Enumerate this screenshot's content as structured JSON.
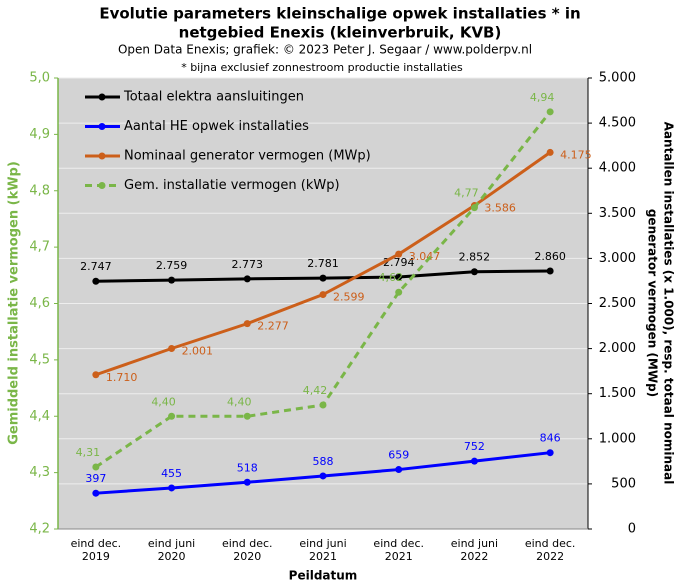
{
  "chart_data": {
    "type": "line",
    "title": [
      "Evolutie  parameters kleinschalige  opwek installaties  * in",
      "netgebied Enexis (kleinverbruik,  KVB)"
    ],
    "subtitle": "Open Data Enexis; grafiek: © 2023 Peter J. Segaar / www.polderpv.nl",
    "note": "* bijna exclusief zonnestroom productie installaties",
    "xlabel": "Peildatum",
    "ylabel": "Gemiddeld installatie vermogen (kWp)",
    "y2label": [
      "Aantallen installaties (x 1.000), resp. totaal nominaal",
      "generator vermogen (MWp)"
    ],
    "categories": [
      [
        "eind dec.",
        "2019"
      ],
      [
        "eind juni",
        "2020"
      ],
      [
        "eind dec.",
        "2020"
      ],
      [
        "eind juni",
        "2021"
      ],
      [
        "eind dec.",
        "2021"
      ],
      [
        "eind juni",
        "2022"
      ],
      [
        "eind dec.",
        "2022"
      ]
    ],
    "ylim": [
      4.2,
      5.0
    ],
    "yticks": [
      {
        "value": 4.2,
        "label": "4,2"
      },
      {
        "value": 4.3,
        "label": "4,3"
      },
      {
        "value": 4.4,
        "label": "4,4"
      },
      {
        "value": 4.5,
        "label": "4,5"
      },
      {
        "value": 4.6,
        "label": "4,6"
      },
      {
        "value": 4.7,
        "label": "4,7"
      },
      {
        "value": 4.8,
        "label": "4,8"
      },
      {
        "value": 4.9,
        "label": "4,9"
      },
      {
        "value": 5.0,
        "label": "5,0"
      }
    ],
    "y2lim": [
      0,
      5000
    ],
    "y2ticks": [
      0,
      500,
      {
        "value": 1000,
        "label": "1.000"
      },
      {
        "value": 1500,
        "label": "1.500"
      },
      {
        "value": 2000,
        "label": "2.000"
      },
      {
        "value": 2500,
        "label": "2.500"
      },
      {
        "value": 3000,
        "label": "3.000"
      },
      {
        "value": 3500,
        "label": "3.500"
      },
      {
        "value": 4000,
        "label": "4.000"
      },
      {
        "value": 4500,
        "label": "4.500"
      },
      {
        "value": 5000,
        "label": "5.000"
      }
    ],
    "grid": true,
    "legend": "upper left",
    "series": [
      {
        "name": "Totaal elektra aansluitingen",
        "color": "#000000",
        "axis": "y2",
        "values": [
          2747,
          2759,
          2773,
          2781,
          2794,
          2852,
          2860
        ],
        "value_labels": [
          "2.747",
          "2.759",
          "2.773",
          "2.781",
          "2.794",
          "2.852",
          "2.860"
        ]
      },
      {
        "name": "Aantal HE opwek installaties",
        "color": "#0000ff",
        "axis": "y2",
        "values": [
          397,
          455,
          518,
          588,
          659,
          752,
          846
        ]
      },
      {
        "name": "Nominaal generator vermogen (MWp)",
        "color": "#cc5f1a",
        "axis": "y2",
        "values": [
          1710,
          2001,
          2277,
          2599,
          3047,
          3586,
          4175
        ],
        "value_labels": [
          "1.710",
          "2.001",
          "2.277",
          "2.599",
          "3.047",
          "3.586",
          "4.175"
        ]
      },
      {
        "name": "Gem. installatie vermogen (kWp)",
        "color": "#7ab648",
        "dashed": true,
        "values": [
          4.31,
          4.4,
          4.4,
          4.42,
          4.62,
          4.77,
          4.94
        ],
        "value_labels": [
          "4,31",
          "4,40",
          "4,40",
          "4,42",
          "4,62",
          "4,77",
          "4,94"
        ]
      }
    ]
  }
}
